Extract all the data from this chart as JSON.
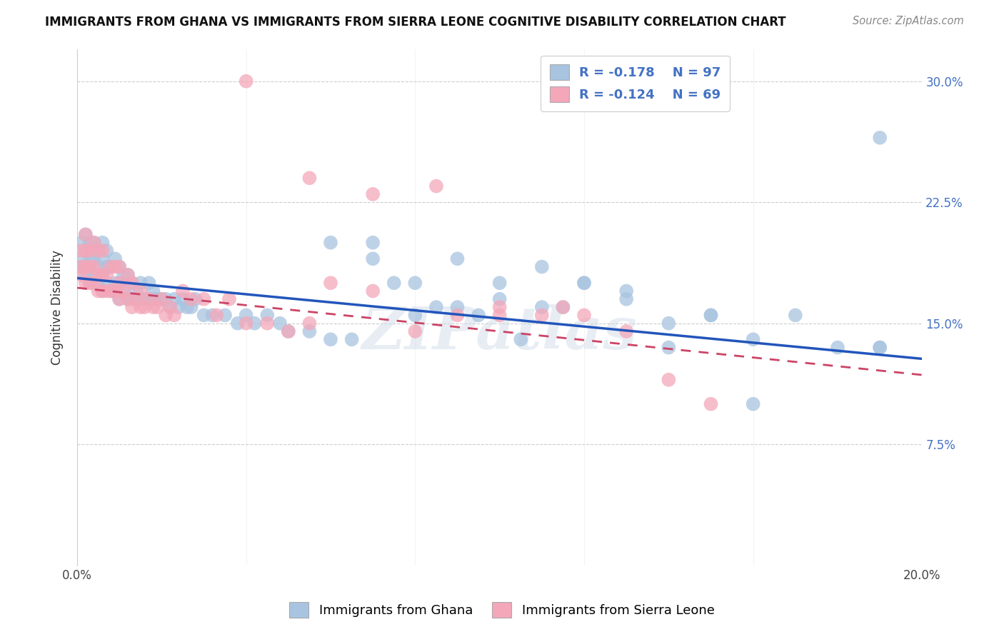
{
  "title": "IMMIGRANTS FROM GHANA VS IMMIGRANTS FROM SIERRA LEONE COGNITIVE DISABILITY CORRELATION CHART",
  "source": "Source: ZipAtlas.com",
  "ylabel": "Cognitive Disability",
  "xlim": [
    0.0,
    0.2
  ],
  "ylim": [
    0.0,
    0.32
  ],
  "x_tick_positions": [
    0.0,
    0.04,
    0.08,
    0.12,
    0.16,
    0.2
  ],
  "x_tick_labels": [
    "0.0%",
    "",
    "",
    "",
    "",
    "20.0%"
  ],
  "y_tick_positions": [
    0.0,
    0.075,
    0.15,
    0.225,
    0.3
  ],
  "y_tick_labels": [
    "",
    "7.5%",
    "15.0%",
    "22.5%",
    "30.0%"
  ],
  "ghana_color": "#a8c4e0",
  "ghana_line_color": "#2255bb",
  "sierra_color": "#f4a7b9",
  "sierra_line_color": "#cc4466",
  "watermark": "ZIPatlas",
  "legend_R_ghana": "-0.178",
  "legend_N_ghana": "97",
  "legend_R_sierra": "-0.124",
  "legend_N_sierra": "69",
  "legend_label_ghana": "Immigrants from Ghana",
  "legend_label_sierra": "Immigrants from Sierra Leone",
  "ghana_line_start_y": 0.178,
  "ghana_line_end_y": 0.128,
  "sierra_line_start_y": 0.172,
  "sierra_line_end_y": 0.118,
  "ghana_scatter_x": [
    0.001,
    0.001,
    0.001,
    0.002,
    0.002,
    0.002,
    0.002,
    0.003,
    0.003,
    0.003,
    0.003,
    0.004,
    0.004,
    0.004,
    0.005,
    0.005,
    0.005,
    0.006,
    0.006,
    0.006,
    0.006,
    0.007,
    0.007,
    0.007,
    0.008,
    0.008,
    0.009,
    0.009,
    0.01,
    0.01,
    0.01,
    0.011,
    0.011,
    0.012,
    0.012,
    0.013,
    0.013,
    0.014,
    0.015,
    0.015,
    0.016,
    0.017,
    0.018,
    0.018,
    0.019,
    0.02,
    0.021,
    0.022,
    0.023,
    0.024,
    0.025,
    0.026,
    0.027,
    0.028,
    0.03,
    0.032,
    0.035,
    0.038,
    0.04,
    0.042,
    0.045,
    0.048,
    0.05,
    0.055,
    0.06,
    0.065,
    0.07,
    0.075,
    0.08,
    0.085,
    0.09,
    0.095,
    0.1,
    0.105,
    0.11,
    0.115,
    0.12,
    0.13,
    0.14,
    0.15,
    0.16,
    0.17,
    0.18,
    0.19,
    0.06,
    0.07,
    0.08,
    0.09,
    0.1,
    0.11,
    0.12,
    0.13,
    0.14,
    0.15,
    0.16,
    0.19,
    0.19
  ],
  "ghana_scatter_y": [
    0.185,
    0.19,
    0.2,
    0.18,
    0.185,
    0.195,
    0.205,
    0.175,
    0.185,
    0.19,
    0.2,
    0.18,
    0.19,
    0.2,
    0.175,
    0.185,
    0.195,
    0.17,
    0.18,
    0.19,
    0.2,
    0.175,
    0.185,
    0.195,
    0.17,
    0.185,
    0.175,
    0.19,
    0.165,
    0.175,
    0.185,
    0.17,
    0.18,
    0.165,
    0.18,
    0.165,
    0.175,
    0.17,
    0.165,
    0.175,
    0.165,
    0.175,
    0.165,
    0.17,
    0.165,
    0.165,
    0.165,
    0.16,
    0.165,
    0.16,
    0.165,
    0.16,
    0.16,
    0.165,
    0.155,
    0.155,
    0.155,
    0.15,
    0.155,
    0.15,
    0.155,
    0.15,
    0.145,
    0.145,
    0.14,
    0.14,
    0.19,
    0.175,
    0.155,
    0.16,
    0.16,
    0.155,
    0.165,
    0.14,
    0.16,
    0.16,
    0.175,
    0.165,
    0.15,
    0.155,
    0.14,
    0.155,
    0.135,
    0.265,
    0.2,
    0.2,
    0.175,
    0.19,
    0.175,
    0.185,
    0.175,
    0.17,
    0.135,
    0.155,
    0.1,
    0.135,
    0.135
  ],
  "sierra_scatter_x": [
    0.001,
    0.001,
    0.001,
    0.002,
    0.002,
    0.002,
    0.002,
    0.003,
    0.003,
    0.003,
    0.004,
    0.004,
    0.004,
    0.005,
    0.005,
    0.005,
    0.006,
    0.006,
    0.006,
    0.007,
    0.007,
    0.008,
    0.008,
    0.009,
    0.009,
    0.01,
    0.01,
    0.01,
    0.011,
    0.012,
    0.012,
    0.013,
    0.013,
    0.014,
    0.015,
    0.015,
    0.016,
    0.017,
    0.018,
    0.019,
    0.02,
    0.021,
    0.022,
    0.023,
    0.025,
    0.027,
    0.03,
    0.033,
    0.036,
    0.04,
    0.045,
    0.05,
    0.055,
    0.06,
    0.07,
    0.08,
    0.09,
    0.1,
    0.11,
    0.12,
    0.13,
    0.14,
    0.15,
    0.04,
    0.055,
    0.07,
    0.085,
    0.1,
    0.115
  ],
  "sierra_scatter_y": [
    0.18,
    0.185,
    0.195,
    0.175,
    0.185,
    0.195,
    0.205,
    0.175,
    0.185,
    0.195,
    0.175,
    0.185,
    0.2,
    0.17,
    0.18,
    0.195,
    0.17,
    0.18,
    0.195,
    0.17,
    0.18,
    0.17,
    0.185,
    0.17,
    0.185,
    0.165,
    0.175,
    0.185,
    0.17,
    0.165,
    0.18,
    0.16,
    0.175,
    0.165,
    0.16,
    0.17,
    0.16,
    0.165,
    0.16,
    0.16,
    0.165,
    0.155,
    0.16,
    0.155,
    0.17,
    0.165,
    0.165,
    0.155,
    0.165,
    0.15,
    0.15,
    0.145,
    0.15,
    0.175,
    0.17,
    0.145,
    0.155,
    0.155,
    0.155,
    0.155,
    0.145,
    0.115,
    0.1,
    0.3,
    0.24,
    0.23,
    0.235,
    0.16,
    0.16
  ]
}
